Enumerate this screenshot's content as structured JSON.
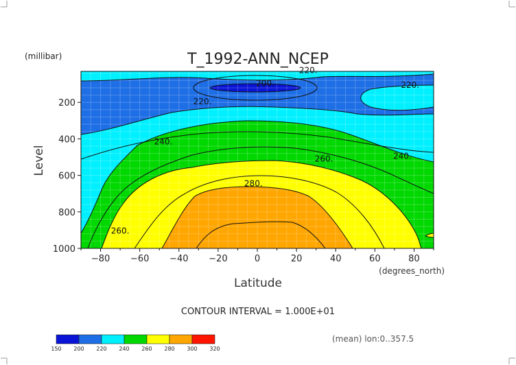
{
  "plot": {
    "title": "T_1992-ANN_NCEP",
    "y_units": "(millibar)",
    "x_units": "(degrees_north)",
    "contour_interval_text": "CONTOUR INTERVAL = 1.000E+01",
    "mean_text": "(mean) lon:0..357.5"
  },
  "chart_data": {
    "type": "contour",
    "title": "T_1992-ANN_NCEP",
    "xlabel": "Latitude",
    "ylabel": "Level",
    "x_units": "(degrees_north)",
    "y_units": "(millibar)",
    "xlim": [
      -90,
      90
    ],
    "ylim": [
      1000,
      30
    ],
    "y_inverted": true,
    "grid": true,
    "x_ticks": [
      -80,
      -60,
      -40,
      -20,
      0,
      20,
      40,
      60,
      80
    ],
    "y_ticks": [
      200,
      400,
      600,
      800,
      1000
    ],
    "contour_interval": 10,
    "contour_labels": [
      {
        "text": "220.",
        "lat": 26,
        "level": 40
      },
      {
        "text": "200.",
        "lat": 4,
        "level": 110
      },
      {
        "text": "220.",
        "lat": 78,
        "level": 120
      },
      {
        "text": "220.",
        "lat": -28,
        "level": 210
      },
      {
        "text": "240.",
        "lat": -48,
        "level": 430
      },
      {
        "text": "240.",
        "lat": 74,
        "level": 510
      },
      {
        "text": "260.",
        "lat": 34,
        "level": 525
      },
      {
        "text": "280.",
        "lat": -2,
        "level": 660
      },
      {
        "text": "260.",
        "lat": -70,
        "level": 920
      }
    ],
    "colorbar": {
      "levels": [
        150,
        200,
        220,
        240,
        260,
        280,
        300,
        320
      ],
      "colors": [
        "#0a14d6",
        "#1e6ee6",
        "#00f0ff",
        "#00d800",
        "#ffff00",
        "#ffa600",
        "#ff1400"
      ]
    },
    "fill_colors": {
      "below_200": "#0a14d6",
      "200_220": "#1e6ee6",
      "220_240": "#00f0ff",
      "240_260": "#00d800",
      "260_280": "#ffff00",
      "280_300": "#ffa600"
    }
  }
}
